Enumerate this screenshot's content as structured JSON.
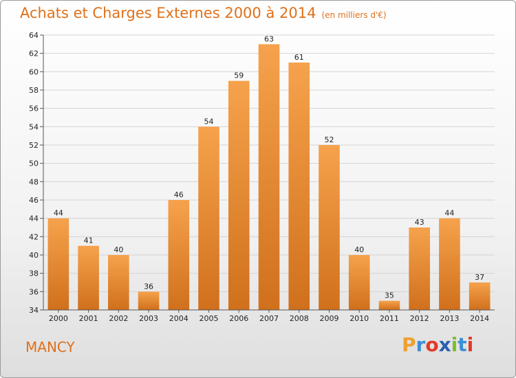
{
  "page": {
    "title": "Achats et Charges Externes 2000 à 2014",
    "subtitle": "(en milliers d'€)",
    "commune": "MANCY",
    "logo": {
      "text": "Proxiti",
      "letters": [
        "P",
        "r",
        "o",
        "x",
        "i",
        "t",
        "i"
      ],
      "colors": [
        "#f0a030",
        "#3a8fd6",
        "#e03a2a",
        "#2a5fb0",
        "#7bbf2a",
        "#3a8fd6",
        "#e03a2a"
      ]
    }
  },
  "colors": {
    "accent": "#e0701a",
    "bar_light": "#f6a24c",
    "bar_dark": "#d0701c"
  },
  "chart_data": {
    "type": "bar",
    "categories": [
      "2000",
      "2001",
      "2002",
      "2003",
      "2004",
      "2005",
      "2006",
      "2007",
      "2008",
      "2009",
      "2010",
      "2011",
      "2012",
      "2013",
      "2014"
    ],
    "values": [
      44,
      41,
      40,
      36,
      46,
      54,
      59,
      63,
      61,
      52,
      40,
      35,
      43,
      44,
      37
    ],
    "title": "Achats et Charges Externes 2000 à 2014",
    "xlabel": "",
    "ylabel": "",
    "ylim": [
      34,
      64
    ],
    "yticks": [
      34,
      36,
      38,
      40,
      42,
      44,
      46,
      48,
      50,
      52,
      54,
      56,
      58,
      60,
      62,
      64
    ],
    "grid": "horizontal",
    "legend": "none"
  }
}
